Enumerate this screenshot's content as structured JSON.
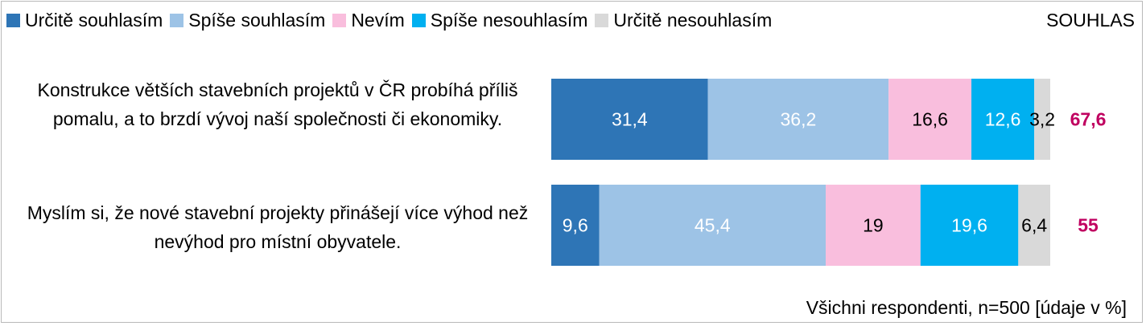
{
  "chart_data": {
    "type": "bar",
    "orientation": "horizontal",
    "stacked": true,
    "legend": {
      "position": "top",
      "entries": [
        {
          "label": "Určitě souhlasím",
          "color": "#2e75b6"
        },
        {
          "label": "Spíše souhlasím",
          "color": "#9dc3e6"
        },
        {
          "label": "Nevím",
          "color": "#f9bedd"
        },
        {
          "label": "Spíše nesouhlasím",
          "color": "#00b0f0"
        },
        {
          "label": "Určitě nesouhlasím",
          "color": "#d9d9d9"
        }
      ]
    },
    "summary_header": "SOUHLAS",
    "categories": [
      "Konstrukce větších stavebních projektů v ČR probíhá příliš pomalu, a to brzdí vývoj naší společnosti či ekonomiky.",
      "Myslím si, že nové stavební projekty přinášejí více výhod než nevýhod pro místní obyvatele."
    ],
    "series": [
      {
        "name": "Určitě souhlasím",
        "values": [
          31.4,
          9.6
        ],
        "labels": [
          "31,4",
          "9,6"
        ],
        "label_color": "#ffffff"
      },
      {
        "name": "Spíše souhlasím",
        "values": [
          36.2,
          45.4
        ],
        "labels": [
          "36,2",
          "45,4"
        ],
        "label_color": "#ffffff"
      },
      {
        "name": "Nevím",
        "values": [
          16.6,
          19
        ],
        "labels": [
          "16,6",
          "19"
        ],
        "label_color": "#000000"
      },
      {
        "name": "Spíše nesouhlasím",
        "values": [
          12.6,
          19.6
        ],
        "labels": [
          "12,6",
          "19,6"
        ],
        "label_color": "#ffffff"
      },
      {
        "name": "Určitě nesouhlasím",
        "values": [
          3.2,
          6.4
        ],
        "labels": [
          "3,2",
          "6,4"
        ],
        "label_color": "#000000"
      }
    ],
    "summary_values": [
      67.6,
      55
    ],
    "summary_labels": [
      "67,6",
      "55"
    ],
    "summary_color": "#c00060",
    "xlim": [
      0,
      100
    ],
    "grid": false,
    "footnote": "Všichni respondenti, n=500 [údaje v %]"
  }
}
